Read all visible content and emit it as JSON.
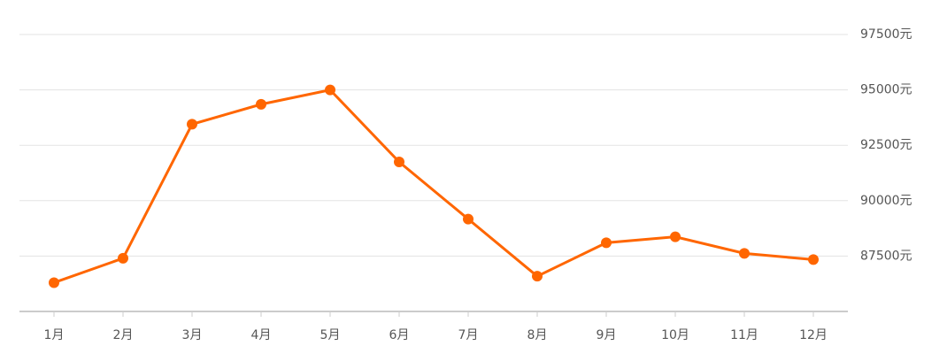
{
  "chart_data": {
    "type": "line",
    "categories": [
      "1月",
      "2月",
      "3月",
      "4月",
      "5月",
      "6月",
      "7月",
      "8月",
      "9月",
      "10月",
      "11月",
      "12月"
    ],
    "series": [
      {
        "color": "#ff6600",
        "values": [
          86300,
          87400,
          93450,
          94350,
          95000,
          91750,
          89170,
          86590,
          88100,
          88370,
          87620,
          87340
        ]
      }
    ],
    "ylim": [
      85000,
      97500
    ],
    "yticks": [
      {
        "value": 87500,
        "label": "87500元"
      },
      {
        "value": 90000,
        "label": "90000元"
      },
      {
        "value": 92500,
        "label": "92500元"
      },
      {
        "value": 95000,
        "label": "95000元"
      },
      {
        "value": 97500,
        "label": "97500元"
      }
    ],
    "grid": true
  }
}
